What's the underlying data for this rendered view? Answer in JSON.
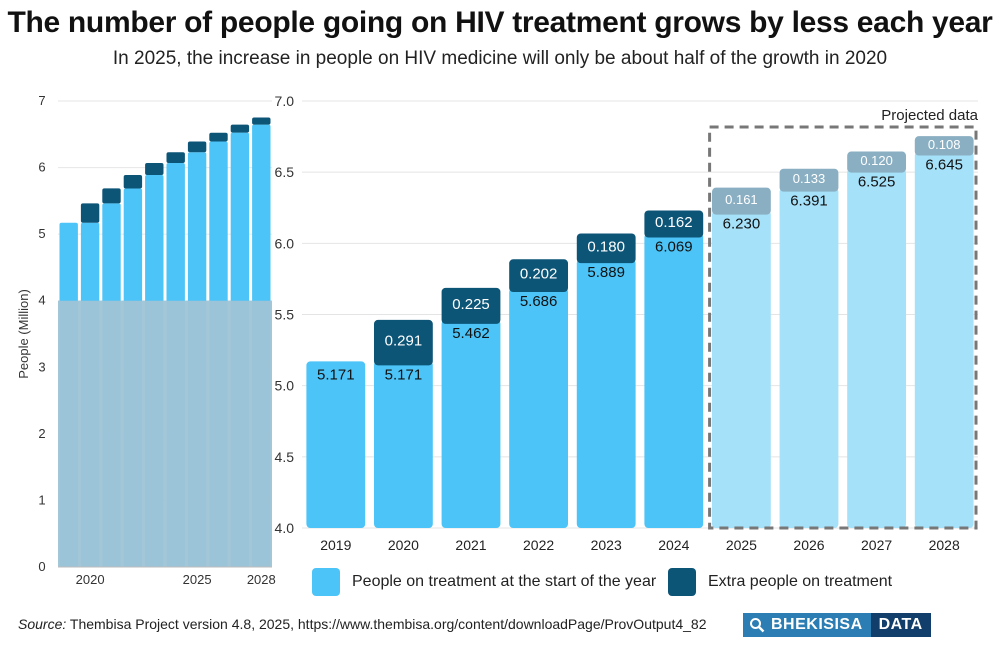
{
  "title": "The number of people going on HIV treatment grows by less each year",
  "subtitle": "In 2025, the increase in people on HIV medicine will only be about half of the growth in 2020",
  "source_label": "Source:",
  "source_text": "Thembisa Project version 4.8, 2025, https://www.thembisa.org/content/downloadPage/ProvOutput4_82",
  "logo": {
    "left": "BHEKISISA",
    "right": "DATA"
  },
  "colors": {
    "base_actual": "#4cc4f7",
    "extra_actual": "#0c5577",
    "base_projected": "#a6e1fa",
    "extra_projected": "#8aafc2",
    "zoom_region": "#9fc4d6",
    "dashed_box": "#777777"
  },
  "legend": [
    {
      "label": "People on treatment at the start of the year",
      "color": "#4cc4f7"
    },
    {
      "label": "Extra people on treatment",
      "color": "#0c5577"
    }
  ],
  "chart_data": [
    {
      "type": "bar",
      "id": "overview",
      "ylabel": "People (Million)",
      "ylim": [
        0,
        7
      ],
      "yticks": [
        "0",
        "1",
        "2",
        "3",
        "4",
        "5",
        "6",
        "7"
      ],
      "categories": [
        "2019",
        "2020",
        "2021",
        "2022",
        "2023",
        "2024",
        "2025",
        "2026",
        "2027",
        "2028"
      ],
      "xtick_labels": [
        "",
        "2020",
        "",
        "",
        "",
        "",
        "2025",
        "",
        "",
        "2028"
      ],
      "zoom_band": [
        4,
        7
      ],
      "series": [
        {
          "name": "People on treatment at the start of the year",
          "values": [
            5.171,
            5.171,
            5.462,
            5.686,
            5.889,
            6.069,
            6.23,
            6.391,
            6.525,
            6.645
          ]
        },
        {
          "name": "Extra people on treatment",
          "values": [
            0,
            0.291,
            0.225,
            0.202,
            0.18,
            0.162,
            0.161,
            0.133,
            0.12,
            0.108
          ]
        }
      ]
    },
    {
      "type": "bar",
      "id": "detail",
      "ylim": [
        4.0,
        7.0
      ],
      "yticks": [
        "4.0",
        "4.5",
        "5.0",
        "5.5",
        "6.0",
        "6.5",
        "7.0"
      ],
      "categories": [
        "2019",
        "2020",
        "2021",
        "2022",
        "2023",
        "2024",
        "2025",
        "2026",
        "2027",
        "2028"
      ],
      "projected_from": "2025",
      "annotation": "Projected data",
      "series": [
        {
          "name": "People on treatment at the start of the year",
          "values": [
            5.171,
            5.171,
            5.462,
            5.686,
            5.889,
            6.069,
            6.23,
            6.391,
            6.525,
            6.645
          ],
          "labels": [
            "5.171",
            "5.171",
            "5.462",
            "5.686",
            "5.889",
            "6.069",
            "6.230",
            "6.391",
            "6.525",
            "6.645"
          ]
        },
        {
          "name": "Extra people on treatment",
          "values": [
            0,
            0.291,
            0.225,
            0.202,
            0.18,
            0.162,
            0.161,
            0.133,
            0.12,
            0.108
          ],
          "labels": [
            "",
            "0.291",
            "0.225",
            "0.202",
            "0.180",
            "0.162",
            "0.161",
            "0.133",
            "0.120",
            "0.108"
          ]
        }
      ]
    }
  ]
}
